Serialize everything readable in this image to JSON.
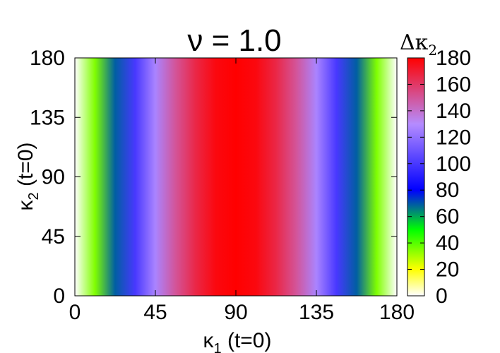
{
  "chart_data": {
    "type": "heatmap",
    "title": "ν = 1.0",
    "xlabel": {
      "main": "κ",
      "sub": "1",
      "rest": " (t=0)"
    },
    "ylabel": {
      "main": "κ",
      "sub": "2",
      "rest": " (t=0)"
    },
    "colorbar_label": {
      "main": "Δκ",
      "sub": "2"
    },
    "xlim": [
      0,
      180
    ],
    "ylim": [
      0,
      180
    ],
    "x_ticks": [
      "0",
      "45",
      "90",
      "135",
      "180"
    ],
    "y_ticks": [
      "0",
      "45",
      "90",
      "135",
      "180"
    ],
    "colorbar_range": [
      0,
      180
    ],
    "colorbar_ticks": [
      "0",
      "20",
      "40",
      "60",
      "80",
      "100",
      "120",
      "140",
      "160",
      "180"
    ],
    "field_description": "value depends only on x: Δκ2 = 180·sin(κ1) (constant along κ2)",
    "x": [
      0,
      11.25,
      22.5,
      33.75,
      45,
      56.25,
      67.5,
      78.75,
      90,
      101.25,
      112.5,
      123.75,
      135,
      146.25,
      157.5,
      168.75,
      180
    ],
    "values": [
      0,
      35,
      69,
      100,
      127,
      150,
      166,
      177,
      180,
      177,
      166,
      150,
      127,
      100,
      69,
      35,
      0
    ],
    "colormap_stops": [
      {
        "value": 0,
        "color": "#ffffff"
      },
      {
        "value": 20,
        "color": "#ffff00"
      },
      {
        "value": 50,
        "color": "#00ff00"
      },
      {
        "value": 80,
        "color": "#0000ff"
      },
      {
        "value": 130,
        "color": "#b58cff"
      },
      {
        "value": 180,
        "color": "#ff0000"
      }
    ],
    "grid": false
  }
}
